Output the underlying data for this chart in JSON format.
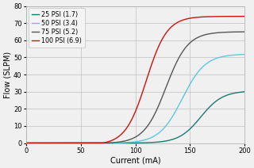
{
  "xlabel": "Current (mA)",
  "ylabel": "Flow (SLPM)",
  "xlim": [
    0,
    200
  ],
  "ylim": [
    0,
    80
  ],
  "xticks": [
    0,
    50,
    100,
    150,
    200
  ],
  "yticks": [
    0,
    10,
    20,
    30,
    40,
    50,
    60,
    70,
    80
  ],
  "series": [
    {
      "label": "25 PSI (1.7)",
      "color": "#1a7a70",
      "onset": 77,
      "max_flow": 30.5,
      "k": 0.1,
      "midpoint": 160
    },
    {
      "label": "50 PSI (3.4)",
      "color": "#5bc8df",
      "onset": 75,
      "max_flow": 52,
      "k": 0.095,
      "midpoint": 143
    },
    {
      "label": "75 PSI (5.2)",
      "color": "#555555",
      "onset": 73,
      "max_flow": 65,
      "k": 0.1,
      "midpoint": 128
    },
    {
      "label": "100 PSI (6.9)",
      "color": "#cc1111",
      "onset": 70,
      "max_flow": 74,
      "k": 0.105,
      "midpoint": 110
    }
  ],
  "background_color": "#f0f0f0",
  "grid_color": "#c0c0c0",
  "legend_fontsize": 5.8,
  "axis_fontsize": 7,
  "tick_fontsize": 6
}
